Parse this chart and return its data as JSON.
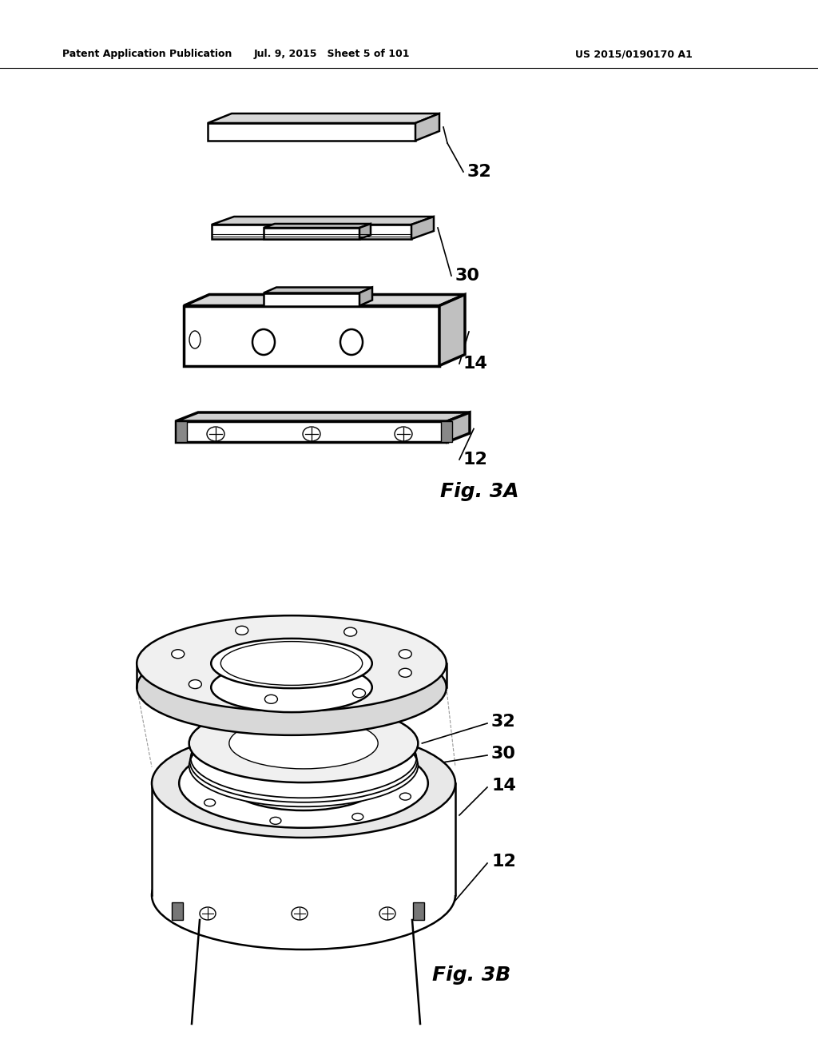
{
  "header_left": "Patent Application Publication",
  "header_center": "Jul. 9, 2015   Sheet 5 of 101",
  "header_right": "US 2015/0190170 A1",
  "fig3a_label": "Fig. 3A",
  "fig3b_label": "Fig. 3B",
  "background_color": "#ffffff",
  "line_color": "#000000",
  "gray_light": "#e8e8e8",
  "gray_mid": "#cccccc",
  "gray_dark": "#aaaaaa"
}
